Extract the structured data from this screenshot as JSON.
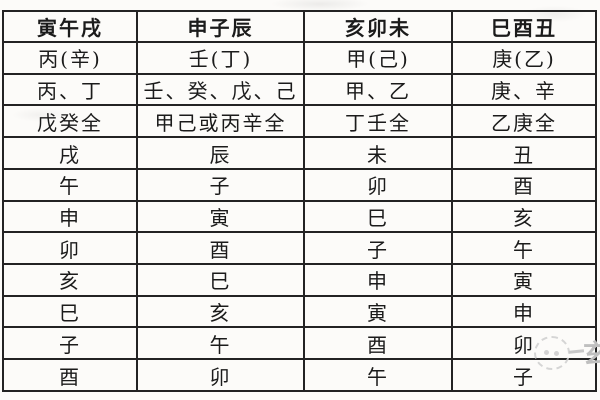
{
  "table": {
    "headers": [
      "寅午戌",
      "申子辰",
      "亥卯未",
      "巳酉丑"
    ],
    "rows": [
      [
        "丙(辛)",
        "壬(丁)",
        "甲(己)",
        "庚(乙)"
      ],
      [
        "丙、丁",
        "壬、癸、戊、己",
        "甲、乙",
        "庚、辛"
      ],
      [
        "戊癸全",
        "甲己或丙辛全",
        "丁壬全",
        "乙庚全"
      ],
      [
        "戌",
        "辰",
        "未",
        "丑"
      ],
      [
        "午",
        "子",
        "卯",
        "酉"
      ],
      [
        "申",
        "寅",
        "巳",
        "亥"
      ],
      [
        "卯",
        "酉",
        "子",
        "午"
      ],
      [
        "亥",
        "巳",
        "申",
        "寅"
      ],
      [
        "巳",
        "亥",
        "寅",
        "申"
      ],
      [
        "子",
        "午",
        "酉",
        "卯"
      ],
      [
        "酉",
        "卯",
        "午",
        "子"
      ]
    ]
  },
  "watermark": {
    "text": "玄"
  },
  "colors": {
    "border": "#232323",
    "text": "#1b1b1b",
    "background": "#fcfbf9",
    "watermark": "#c6c6c6"
  }
}
